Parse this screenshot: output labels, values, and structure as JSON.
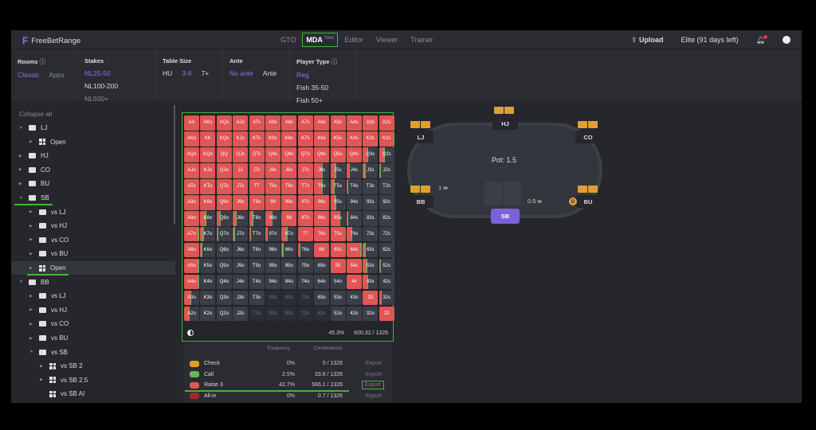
{
  "header": {
    "brand": "FreeBetRange",
    "nav": [
      "GTO",
      "MDA",
      "Editor",
      "Viewer",
      "Trainer"
    ],
    "nav_badge": "New",
    "upload": "Upload",
    "plan": "Elite (91 days left)"
  },
  "filters": [
    {
      "title": "Rooms",
      "options": [
        {
          "l": "Classic",
          "s": true
        },
        {
          "l": "Apps",
          "s": false
        }
      ]
    },
    {
      "title": "Stakes",
      "options": [
        {
          "l": "NL25-50",
          "s": true
        },
        {
          "l": "NL100-200",
          "s": false,
          "w": true
        },
        {
          "l": "NL500+",
          "s": false
        }
      ]
    },
    {
      "title": "Table Size",
      "options": [
        {
          "l": "HU",
          "s": false,
          "w": true
        },
        {
          "l": "3-6",
          "s": true
        },
        {
          "l": "7+",
          "s": false,
          "w": true
        }
      ]
    },
    {
      "title": "Ante",
      "options": [
        {
          "l": "No ante",
          "s": true
        },
        {
          "l": "Ante",
          "s": false,
          "w": true
        }
      ]
    },
    {
      "title": "Player Type",
      "options": [
        {
          "l": "Reg",
          "s": true
        },
        {
          "l": "Fish 35-50",
          "s": false,
          "w": true
        },
        {
          "l": "Fish 50+",
          "s": false,
          "w": true
        }
      ]
    }
  ],
  "sidebar": {
    "collapse_all": "Collapse all",
    "items": [
      {
        "l": "LJ",
        "d": 0,
        "t": "folder",
        "open": true
      },
      {
        "l": "Open",
        "d": 1,
        "t": "range"
      },
      {
        "l": "HJ",
        "d": 0,
        "t": "folder"
      },
      {
        "l": "CO",
        "d": 0,
        "t": "folder"
      },
      {
        "l": "BU",
        "d": 0,
        "t": "folder"
      },
      {
        "l": "SB",
        "d": 0,
        "t": "folder",
        "open": true,
        "u": true
      },
      {
        "l": "vs LJ",
        "d": 1,
        "t": "folder"
      },
      {
        "l": "vs HJ",
        "d": 1,
        "t": "folder"
      },
      {
        "l": "vs CO",
        "d": 1,
        "t": "folder"
      },
      {
        "l": "vs BU",
        "d": 1,
        "t": "folder"
      },
      {
        "l": "Open",
        "d": 1,
        "t": "range",
        "active": true,
        "u": true
      },
      {
        "l": "BB",
        "d": 0,
        "t": "folder",
        "open": true
      },
      {
        "l": "vs LJ",
        "d": 1,
        "t": "folder"
      },
      {
        "l": "vs HJ",
        "d": 1,
        "t": "folder"
      },
      {
        "l": "vs CO",
        "d": 1,
        "t": "folder"
      },
      {
        "l": "vs BU",
        "d": 1,
        "t": "folder"
      },
      {
        "l": "vs SB",
        "d": 1,
        "t": "folder",
        "open": true
      },
      {
        "l": "vs SB 2",
        "d": 2,
        "t": "range"
      },
      {
        "l": "vs SB 2.5",
        "d": 2,
        "t": "range"
      },
      {
        "l": "vs SB AI",
        "d": 2,
        "t": "range",
        "nocaret": true
      }
    ]
  },
  "grid": {
    "ranks": [
      "A",
      "K",
      "Q",
      "J",
      "T",
      "9",
      "8",
      "7",
      "6",
      "5",
      "4",
      "3",
      "2"
    ],
    "raise": [
      [
        1,
        1,
        1,
        1,
        1,
        1,
        1,
        1,
        1,
        1,
        1,
        1,
        1
      ],
      [
        1,
        1,
        1,
        1,
        1,
        1,
        1,
        1,
        1,
        1,
        1,
        0.95,
        0.95
      ],
      [
        1,
        1,
        1,
        1,
        1,
        1,
        1,
        1,
        1,
        1,
        1,
        0.3,
        0.3
      ],
      [
        1,
        1,
        1,
        1,
        1,
        1,
        1,
        1,
        0.5,
        0.3,
        0.15,
        0.1,
        0.05
      ],
      [
        1,
        1,
        1,
        1,
        1,
        1,
        1,
        1,
        0.5,
        0.2,
        0.05,
        0,
        0
      ],
      [
        1,
        1,
        1,
        0.95,
        1,
        1,
        1,
        1,
        1,
        0.3,
        0,
        0,
        0
      ],
      [
        1,
        0.3,
        0.2,
        0.15,
        0.2,
        0.4,
        1,
        1,
        1,
        0.6,
        0.05,
        0,
        0
      ],
      [
        0.9,
        0.15,
        0.05,
        0.05,
        0.05,
        0.1,
        0.3,
        1,
        1,
        1,
        0.3,
        0,
        0
      ],
      [
        1,
        0.05,
        0,
        0,
        0,
        0,
        0.05,
        0.1,
        1,
        1,
        0.9,
        0.1,
        0
      ],
      [
        0.9,
        0,
        0,
        0,
        0,
        0,
        0,
        0,
        0,
        1,
        0.95,
        0.2,
        0.05
      ],
      [
        0.9,
        0,
        0,
        0,
        0,
        0,
        0,
        0,
        0,
        0,
        1,
        0.3,
        0
      ],
      [
        0.4,
        0,
        0,
        0,
        0,
        0,
        0,
        0,
        0,
        0,
        0,
        1,
        0.1
      ],
      [
        0.3,
        0,
        0,
        0,
        0,
        0,
        0,
        0,
        0,
        0,
        0,
        0,
        1
      ]
    ],
    "disabled": [
      "93o",
      "83o",
      "73o",
      "T2o",
      "92o",
      "82o",
      "72o",
      "62o"
    ],
    "percent": "45.3%",
    "combos": "600.32 / 1326"
  },
  "stats": {
    "col_freq": "Frequency",
    "col_combos": "Combinations",
    "rows": [
      {
        "name": "Check",
        "freq": "0%",
        "combos": "0 / 1326",
        "export": "Export",
        "color": "#e0a020"
      },
      {
        "name": "Call",
        "freq": "2.5%",
        "combos": "33.6 / 1326",
        "export": "Export",
        "color": "#6fb35a"
      },
      {
        "name": "Raise 3",
        "freq": "42.7%",
        "combos": "566.1 / 1326",
        "export": "Export",
        "color": "#e05555"
      },
      {
        "name": "All-in",
        "freq": "0%",
        "combos": "0.7 / 1326",
        "export": "Export",
        "color": "#a02a2a"
      }
    ]
  },
  "table": {
    "pot": "Pot: 1.5",
    "seats": {
      "lj": "LJ",
      "hj": "HJ",
      "co": "CO",
      "bb": "BB",
      "sb": "SB",
      "bu": "BU"
    },
    "bb_bet": "1",
    "sb_bet": "0.5",
    "dealer": "D"
  }
}
